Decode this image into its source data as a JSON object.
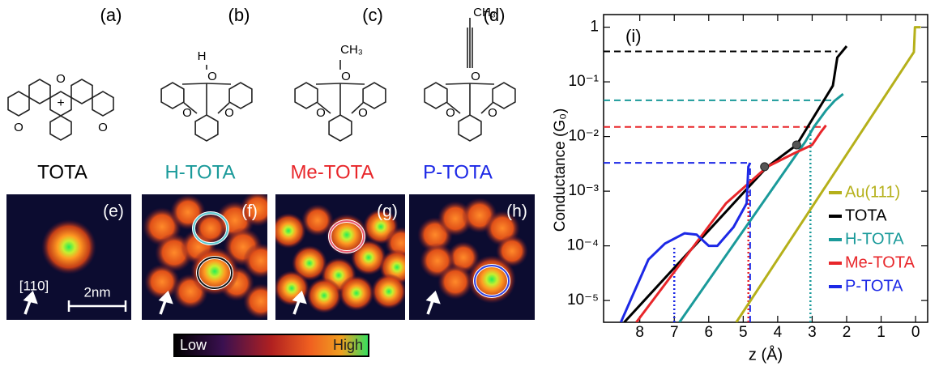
{
  "panels": [
    {
      "label": "(a)",
      "name": "TOTA",
      "color": "#000000",
      "atoms": [
        "+",
        "O",
        "O",
        "O"
      ]
    },
    {
      "label": "(b)",
      "name": "H-TOTA",
      "color": "#1a9a9a",
      "atoms": [
        "H",
        "O",
        "O",
        "O"
      ]
    },
    {
      "label": "(c)",
      "name": "Me-TOTA",
      "color": "#e8262a",
      "atoms": [
        "CH₃",
        "O",
        "O",
        "O"
      ]
    },
    {
      "label": "(d)",
      "name": "P-TOTA",
      "color": "#1c28e6",
      "atoms": [
        "CH₃",
        "O",
        "O",
        "O"
      ]
    }
  ],
  "images": [
    {
      "label": "(e)"
    },
    {
      "label": "(f)"
    },
    {
      "label": "(g)"
    },
    {
      "label": "(h)"
    }
  ],
  "direction": "[110]",
  "scale_bar": "2nm",
  "colorbar": {
    "low": "Low",
    "high": "High"
  },
  "chart_data": {
    "type": "line",
    "panel_label": "(i)",
    "xlabel": "z (Å)",
    "ylabel": "Conductance (G₀)",
    "yscale": "log",
    "legend": "lower right",
    "xlim": [
      9.05,
      -0.35
    ],
    "xticks": [
      8,
      7,
      6,
      5,
      4,
      3,
      2,
      1,
      0
    ],
    "ylim": [
      4e-06,
      1.7
    ],
    "yticks": [
      1,
      {
        "value": 0.1,
        "label": "10⁻¹"
      },
      {
        "value": 0.01,
        "label": "10⁻²"
      },
      {
        "value": 0.001,
        "label": "10⁻³"
      },
      {
        "value": 0.0001,
        "label": "10⁻⁴"
      },
      {
        "value": 1e-05,
        "label": "10⁻⁵"
      }
    ],
    "series": [
      {
        "name": "Au(111)",
        "color": "#b5b01a",
        "x": [
          5.2,
          0.05,
          0.02,
          -0.15
        ],
        "values": [
          4e-06,
          0.35,
          1,
          1
        ]
      },
      {
        "name": "TOTA",
        "color": "#000000",
        "x": [
          8.45,
          4.3,
          3.45,
          2.4,
          2.27,
          2.0
        ],
        "values": [
          4e-06,
          0.0028,
          0.007,
          0.085,
          0.28,
          0.45
        ]
      },
      {
        "name": "H-TOTA",
        "color": "#1a9a9a",
        "x": [
          6.85,
          3.2,
          2.95,
          2.6,
          2.35,
          2.1
        ],
        "values": [
          4e-06,
          0.008,
          0.015,
          0.03,
          0.045,
          0.06
        ]
      },
      {
        "name": "Me-TOTA",
        "color": "#e8262a",
        "x": [
          8.1,
          5.5,
          4.3,
          3.5,
          3.0,
          2.75,
          2.6
        ],
        "values": [
          4e-06,
          0.0006,
          0.0028,
          0.005,
          0.007,
          0.012,
          0.016
        ]
      },
      {
        "name": "P-TOTA",
        "color": "#1c28e6",
        "x": [
          8.55,
          7.75,
          7.27,
          6.7,
          6.35,
          6.0,
          5.75,
          5.28,
          4.9,
          4.85,
          4.8
        ],
        "values": [
          4e-06,
          5.6e-05,
          0.00011,
          0.00017,
          0.00016,
          0.0001,
          0.0001,
          0.00022,
          0.0006,
          0.0028,
          0.0033
        ]
      }
    ],
    "hlines": [
      {
        "y": 0.36,
        "x_end": 2.27,
        "color": "#000000"
      },
      {
        "y": 0.046,
        "x_end": 2.39,
        "color": "#1a9a9a"
      },
      {
        "y": 0.015,
        "x_end": 2.63,
        "color": "#e8262a"
      },
      {
        "y": 0.0033,
        "x_end": 4.8,
        "color": "#1c28e6"
      }
    ],
    "vlines": [
      {
        "x": 7.0,
        "y_end": 0.0001,
        "color": "#1c28e6",
        "style": "dotted"
      },
      {
        "x": 4.85,
        "y_end": 0.001,
        "color": "#e8262a",
        "style": "dotted"
      },
      {
        "x": 3.05,
        "y_end": 0.013,
        "color": "#1a9a9a",
        "style": "dotted"
      },
      {
        "x": 4.8,
        "y_end": 0.0033,
        "color": "#1c28e6",
        "style": "dashed"
      }
    ],
    "markers": {
      "x": [
        4.38,
        3.45
      ],
      "y": [
        0.0028,
        0.007
      ],
      "color": "#555555"
    }
  }
}
